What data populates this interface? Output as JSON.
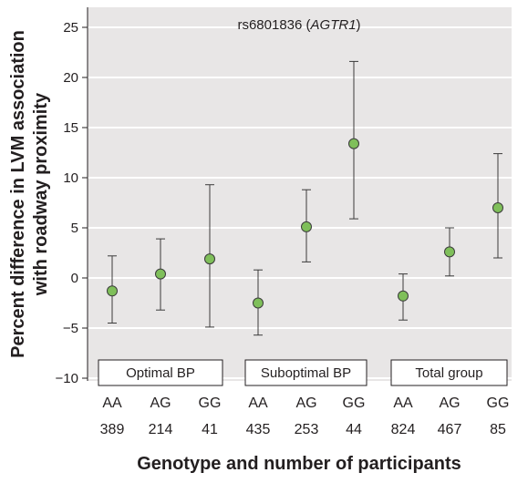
{
  "chart_data": {
    "type": "scatter",
    "title": "rs6801836",
    "title_gene": "AGTR1",
    "ylabel_line1": "Percent difference in LVM association",
    "ylabel_line2": "with roadway proximity",
    "xlabel": "Genotype and number of participants",
    "ylim": [
      -10,
      26
    ],
    "yticks": [
      25,
      20,
      15,
      10,
      5,
      0,
      -5,
      -10
    ],
    "grid": true,
    "groups": [
      "Optimal BP",
      "Suboptimal BP",
      "Total group"
    ],
    "points": [
      {
        "group": "Optimal BP",
        "genotype": "AA",
        "n": "389",
        "y": -1.3,
        "lo": -4.5,
        "hi": 2.2
      },
      {
        "group": "Optimal BP",
        "genotype": "AG",
        "n": "214",
        "y": 0.4,
        "lo": -3.2,
        "hi": 3.9
      },
      {
        "group": "Optimal BP",
        "genotype": "GG",
        "n": "41",
        "y": 1.9,
        "lo": -4.9,
        "hi": 9.3
      },
      {
        "group": "Suboptimal BP",
        "genotype": "AA",
        "n": "435",
        "y": -2.5,
        "lo": -5.7,
        "hi": 0.8
      },
      {
        "group": "Suboptimal BP",
        "genotype": "AG",
        "n": "253",
        "y": 5.1,
        "lo": 1.6,
        "hi": 8.8
      },
      {
        "group": "Suboptimal BP",
        "genotype": "GG",
        "n": "44",
        "y": 13.4,
        "lo": 5.9,
        "hi": 21.6
      },
      {
        "group": "Total group",
        "genotype": "AA",
        "n": "824",
        "y": -1.8,
        "lo": -4.2,
        "hi": 0.4
      },
      {
        "group": "Total group",
        "genotype": "AG",
        "n": "467",
        "y": 2.6,
        "lo": 0.2,
        "hi": 5.0
      },
      {
        "group": "Total group",
        "genotype": "GG",
        "n": "85",
        "y": 7.0,
        "lo": 2.0,
        "hi": 12.4
      }
    ],
    "colors": {
      "background": "#e8e6e6",
      "grid": "#ffffff",
      "marker": "#7fbf5a",
      "marker_stroke": "#3b3b3b",
      "errorbar": "#3b3b3b",
      "text": "#231f20"
    }
  }
}
